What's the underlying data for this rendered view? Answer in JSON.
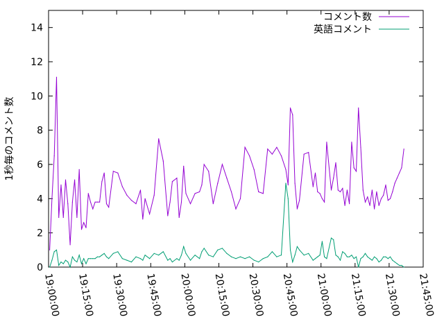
{
  "chart_data": {
    "type": "line",
    "title": "",
    "xlabel": "",
    "ylabel": "1秒毎のコメント数",
    "xlim": [
      "19:00:00",
      "21:45:00"
    ],
    "ylim": [
      0,
      15
    ],
    "yticks": [
      0,
      2,
      4,
      6,
      8,
      10,
      12,
      14
    ],
    "xticks": [
      "19:00:00",
      "19:15:00",
      "19:30:00",
      "19:45:00",
      "20:00:00",
      "20:15:00",
      "20:30:00",
      "20:45:00",
      "21:00:00",
      "21:15:00",
      "21:30:00",
      "21:45:00"
    ],
    "legend_position": "top-right",
    "grid": false,
    "series": [
      {
        "name": "コメント数",
        "color": "#9400d3",
        "x": [
          "19:00:30",
          "19:01:30",
          "19:02:30",
          "19:03:30",
          "19:04:30",
          "19:05:30",
          "19:06:30",
          "19:07:30",
          "19:08:30",
          "19:09:30",
          "19:10:30",
          "19:11:30",
          "19:12:30",
          "19:13:30",
          "19:14:30",
          "19:15:30",
          "19:16:30",
          "19:17:30",
          "19:18:30",
          "19:19:30",
          "19:20:30",
          "19:21:30",
          "19:22:30",
          "19:23:30",
          "19:24:30",
          "19:25:30",
          "19:26:30",
          "19:28:30",
          "19:30:30",
          "19:32:30",
          "19:34:30",
          "19:36:30",
          "19:38:30",
          "19:40:30",
          "19:41:30",
          "19:42:30",
          "19:44:30",
          "19:46:30",
          "19:48:30",
          "19:50:30",
          "19:52:30",
          "19:53:30",
          "19:54:30",
          "19:56:30",
          "19:57:30",
          "19:58:30",
          "19:59:30",
          "20:00:30",
          "20:02:30",
          "20:04:30",
          "20:06:30",
          "20:07:30",
          "20:08:30",
          "20:10:30",
          "20:12:30",
          "20:14:30",
          "20:16:30",
          "20:18:30",
          "20:20:30",
          "20:22:30",
          "20:24:30",
          "20:26:30",
          "20:28:30",
          "20:30:30",
          "20:32:30",
          "20:34:30",
          "20:36:30",
          "20:38:30",
          "20:40:30",
          "20:42:30",
          "20:44:30",
          "20:45:30",
          "20:46:30",
          "20:47:30",
          "20:48:30",
          "20:49:30",
          "20:50:30",
          "20:52:30",
          "20:54:30",
          "20:56:30",
          "20:57:30",
          "20:58:30",
          "20:59:30",
          "21:00:30",
          "21:01:30",
          "21:02:30",
          "21:04:30",
          "21:05:30",
          "21:06:30",
          "21:07:30",
          "21:08:30",
          "21:09:30",
          "21:10:30",
          "21:11:30",
          "21:12:30",
          "21:13:30",
          "21:14:30",
          "21:15:30",
          "21:16:30",
          "21:17:30",
          "21:18:30",
          "21:19:30",
          "21:20:30",
          "21:21:30",
          "21:22:30",
          "21:23:30",
          "21:24:30",
          "21:25:30",
          "21:26:30",
          "21:27:30",
          "21:28:30",
          "21:29:30",
          "21:30:30",
          "21:31:30",
          "21:32:30",
          "21:33:30",
          "21:34:30",
          "21:35:30",
          "21:36:30"
        ],
        "values": [
          1.0,
          4.0,
          6.5,
          11.1,
          2.9,
          4.8,
          2.9,
          5.1,
          3.7,
          1.3,
          3.8,
          5.1,
          2.9,
          5.7,
          2.2,
          2.6,
          2.3,
          4.3,
          3.8,
          3.4,
          3.8,
          3.8,
          3.8,
          5.0,
          5.5,
          3.7,
          3.5,
          5.6,
          5.5,
          4.7,
          4.2,
          3.9,
          3.7,
          4.5,
          2.8,
          4.0,
          3.1,
          4.2,
          7.5,
          6.2,
          3.0,
          3.8,
          5.0,
          5.2,
          2.9,
          3.8,
          5.9,
          4.3,
          3.7,
          4.3,
          4.4,
          4.8,
          6.0,
          5.6,
          3.7,
          4.9,
          6.0,
          5.2,
          4.4,
          3.4,
          4.0,
          7.0,
          6.5,
          5.7,
          4.4,
          4.3,
          6.9,
          6.6,
          7.0,
          6.5,
          5.7,
          4.8,
          9.3,
          8.9,
          4.9,
          3.4,
          3.9,
          6.6,
          6.7,
          4.7,
          5.5,
          4.4,
          4.3,
          4.0,
          3.8,
          7.3,
          4.5,
          5.2,
          6.1,
          4.5,
          4.4,
          4.6,
          3.6,
          4.5,
          3.7,
          7.3,
          5.8,
          5.6,
          9.3,
          7.0,
          4.5,
          3.8,
          4.1,
          3.6,
          4.5,
          3.4,
          4.4,
          3.6,
          4.0,
          4.2,
          4.8,
          3.9,
          4.0,
          4.4,
          4.9,
          5.2,
          5.5,
          5.8,
          6.9
        ],
        "note_points": 0
      },
      {
        "name": "英語コメント",
        "color": "#009e73",
        "x": [
          "19:00:30",
          "19:01:30",
          "19:02:30",
          "19:03:30",
          "19:04:30",
          "19:05:30",
          "19:06:30",
          "19:07:30",
          "19:08:30",
          "19:09:30",
          "19:10:30",
          "19:11:30",
          "19:12:30",
          "19:13:30",
          "19:14:30",
          "19:15:30",
          "19:16:30",
          "19:17:30",
          "19:18:30",
          "19:19:30",
          "19:20:30",
          "19:21:30",
          "19:22:30",
          "19:23:30",
          "19:24:30",
          "19:25:30",
          "19:26:30",
          "19:28:30",
          "19:30:30",
          "19:32:30",
          "19:34:30",
          "19:36:30",
          "19:38:30",
          "19:40:30",
          "19:41:30",
          "19:42:30",
          "19:44:30",
          "19:46:30",
          "19:48:30",
          "19:50:30",
          "19:52:30",
          "19:53:30",
          "19:54:30",
          "19:56:30",
          "19:57:30",
          "19:58:30",
          "19:59:30",
          "20:00:30",
          "20:02:30",
          "20:04:30",
          "20:06:30",
          "20:07:30",
          "20:08:30",
          "20:10:30",
          "20:12:30",
          "20:14:30",
          "20:16:30",
          "20:18:30",
          "20:20:30",
          "20:22:30",
          "20:24:30",
          "20:26:30",
          "20:28:30",
          "20:30:30",
          "20:32:30",
          "20:34:30",
          "20:36:30",
          "20:38:30",
          "20:40:30",
          "20:42:30",
          "20:44:30",
          "20:45:30",
          "20:46:30",
          "20:47:30",
          "20:48:30",
          "20:49:30",
          "20:50:30",
          "20:52:30",
          "20:54:30",
          "20:56:30",
          "20:57:30",
          "20:58:30",
          "20:59:30",
          "21:00:30",
          "21:01:30",
          "21:02:30",
          "21:04:30",
          "21:05:30",
          "21:06:30",
          "21:07:30",
          "21:08:30",
          "21:09:30",
          "21:10:30",
          "21:11:30",
          "21:12:30",
          "21:13:30",
          "21:14:30",
          "21:15:30",
          "21:16:30",
          "21:17:30",
          "21:18:30",
          "21:19:30",
          "21:20:30",
          "21:21:30",
          "21:22:30",
          "21:23:30",
          "21:24:30",
          "21:25:30",
          "21:26:30",
          "21:27:30",
          "21:28:30",
          "21:29:30",
          "21:30:30",
          "21:31:30",
          "21:32:30",
          "21:33:30",
          "21:34:30",
          "21:35:30",
          "21:36:30"
        ],
        "values": [
          0.0,
          0.4,
          0.9,
          1.0,
          0.1,
          0.3,
          0.2,
          0.4,
          0.3,
          0.0,
          0.6,
          0.4,
          0.3,
          0.7,
          0.2,
          0.5,
          0.2,
          0.5,
          0.5,
          0.5,
          0.5,
          0.6,
          0.6,
          0.7,
          0.8,
          0.6,
          0.5,
          0.8,
          0.9,
          0.5,
          0.4,
          0.3,
          0.6,
          0.5,
          0.4,
          0.7,
          0.5,
          0.8,
          0.7,
          0.9,
          0.4,
          0.5,
          0.3,
          0.5,
          0.4,
          0.7,
          1.2,
          0.8,
          0.4,
          0.7,
          0.5,
          0.9,
          1.1,
          0.7,
          0.6,
          1.0,
          1.1,
          0.8,
          0.6,
          0.5,
          0.6,
          0.5,
          0.6,
          0.4,
          0.3,
          0.5,
          0.6,
          0.9,
          0.6,
          0.7,
          4.9,
          4.0,
          1.0,
          0.3,
          0.7,
          1.2,
          1.0,
          0.7,
          0.8,
          0.4,
          0.5,
          0.6,
          0.7,
          1.5,
          0.6,
          0.5,
          1.7,
          1.6,
          0.7,
          0.6,
          0.4,
          0.9,
          0.8,
          0.6,
          0.6,
          0.7,
          0.5,
          0.6,
          0.0,
          0.5,
          0.6,
          0.8,
          0.6,
          0.5,
          0.4,
          0.6,
          0.5,
          0.3,
          0.4,
          0.6,
          0.6,
          0.5,
          0.6,
          0.4,
          0.3,
          0.2,
          0.1,
          0.1,
          0.0
        ],
        "note_points": 0
      }
    ]
  }
}
